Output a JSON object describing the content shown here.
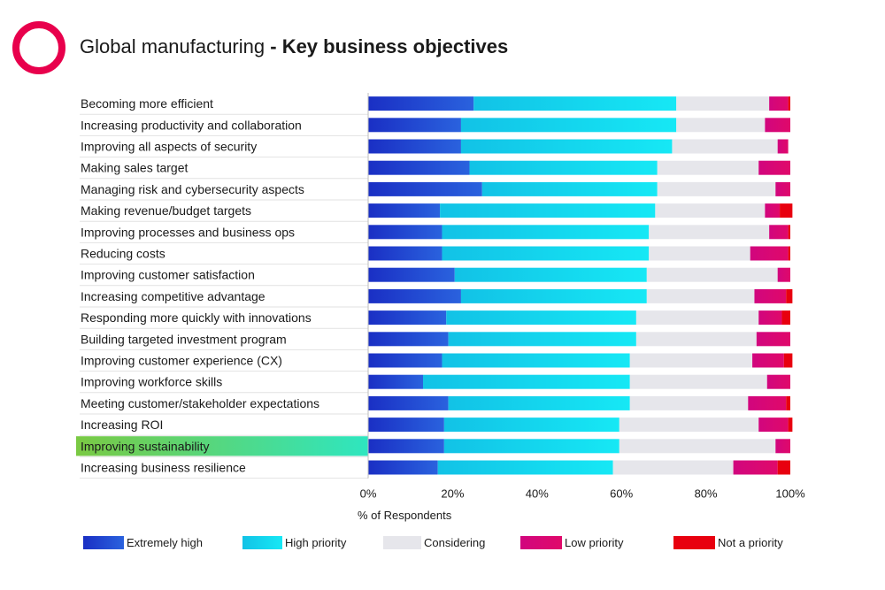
{
  "header": {
    "title_regular": "Global manufacturing",
    "title_separator": " - ",
    "title_bold": "Key business objectives"
  },
  "colors": {
    "logo": "#e8004c",
    "highlight_start": "#7ac943",
    "highlight_end": "#2ee6c0"
  },
  "chart_data": {
    "type": "bar",
    "orientation": "horizontal",
    "stacked": true,
    "title": "Global manufacturing - Key business objectives",
    "xlabel": "% of Respondents",
    "ylabel": "",
    "xlim": [
      0,
      100
    ],
    "x_ticks": [
      "0%",
      "20%",
      "40%",
      "60%",
      "80%",
      "100%"
    ],
    "legend_position": "bottom",
    "highlighted_category": "Improving sustainability",
    "categories": [
      "Becoming more efficient",
      "Increasing productivity and collaboration",
      "Improving all aspects of security",
      "Making sales target",
      "Managing risk and cybersecurity aspects",
      "Making revenue/budget targets",
      "Improving processes and business ops",
      "Reducing costs",
      "Improving customer satisfaction",
      "Increasing competitive advantage",
      "Responding more quickly with innovations",
      "Building targeted investment program",
      "Improving  customer experience (CX)",
      "Improving workforce skills",
      "Meeting customer/stakeholder expectations",
      "Increasing ROI",
      "Improving sustainability",
      "Increasing business resilience"
    ],
    "series": [
      {
        "name": "Extremely high",
        "color": "#1d3fcf",
        "values": [
          25,
          22,
          22,
          24,
          27,
          17,
          17.5,
          17.5,
          20.5,
          22,
          18.5,
          19,
          17.5,
          13,
          19,
          18,
          18,
          16.5
        ]
      },
      {
        "name": "High priority",
        "color": "#14d9ef",
        "values": [
          48,
          51,
          50,
          44.5,
          41.5,
          51,
          49,
          49,
          45.5,
          44,
          45,
          44.5,
          44.5,
          49,
          43,
          41.5,
          41.5,
          41.5
        ]
      },
      {
        "name": "Considering",
        "color": "#e6e6eb",
        "values": [
          22,
          21,
          25,
          24,
          28,
          26,
          28.5,
          24,
          31,
          25.5,
          29,
          28.5,
          29,
          32.5,
          28,
          33,
          37,
          28.5
        ]
      },
      {
        "name": "Low priority",
        "color": "#d9087a",
        "values": [
          4.5,
          6,
          2.5,
          7.5,
          3.5,
          3.5,
          4.5,
          9,
          3,
          7.5,
          5.5,
          8,
          7.5,
          5.5,
          9,
          7,
          3.5,
          10.5
        ]
      },
      {
        "name": "Not a priority",
        "color": "#e8000f",
        "values": [
          0.5,
          0,
          0,
          0,
          0,
          3,
          0.5,
          0.5,
          0,
          1.5,
          2,
          0,
          2,
          0,
          1,
          1,
          0,
          3
        ]
      }
    ]
  }
}
